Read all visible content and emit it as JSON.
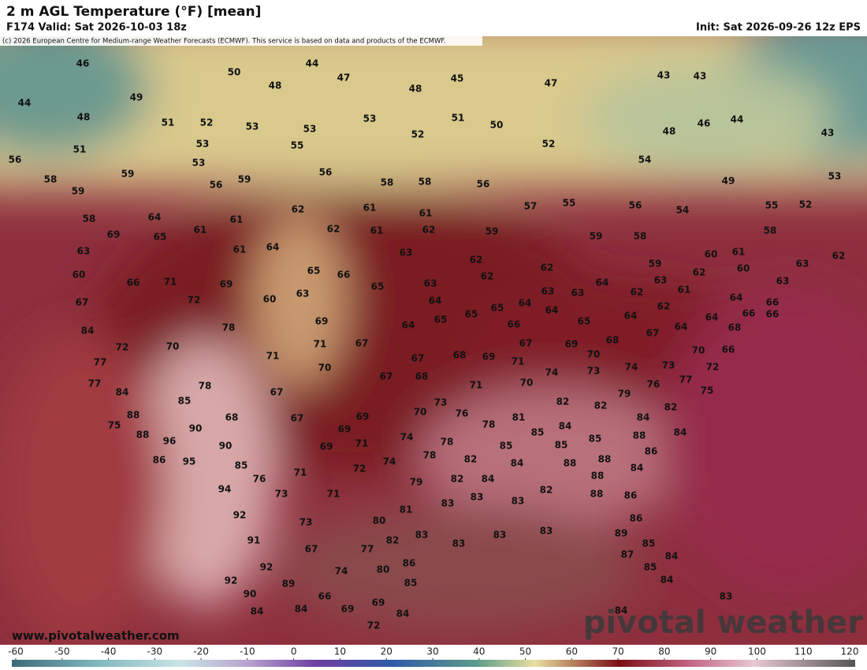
{
  "header": {
    "title": "2 m AGL Temperature (°F) [mean]",
    "valid": "F174 Valid: Sat 2026-10-03 18z",
    "init": "Init: Sat 2026-09-26 12z EPS",
    "credit": "(c) 2026 European Centre for Medium-range Weather Forecasts (ECMWF). This service is based on data and products of the ECMWF."
  },
  "map": {
    "values": [
      46,
      50,
      44,
      47,
      48,
      45,
      48,
      47,
      43,
      43,
      44,
      49,
      48,
      51,
      52,
      53,
      53,
      53,
      51,
      50,
      46,
      44,
      48,
      43,
      51,
      53,
      55,
      52,
      52,
      54,
      56,
      58,
      59,
      59,
      53,
      56,
      59,
      56,
      58,
      58,
      56,
      49,
      53,
      58,
      64,
      61,
      62,
      61,
      61,
      57,
      55,
      56,
      54,
      55,
      52,
      58,
      69,
      65,
      61,
      62,
      61,
      62,
      59,
      59,
      58,
      60,
      61,
      63,
      62,
      63,
      61,
      64,
      63,
      62,
      59,
      60,
      60,
      66,
      71,
      69,
      65,
      66,
      65,
      63,
      62,
      62,
      62,
      63,
      67,
      72,
      60,
      63,
      64,
      64,
      63,
      63,
      64,
      62,
      63,
      61,
      64,
      66,
      84,
      78,
      69,
      64,
      65,
      65,
      65,
      64,
      62,
      66,
      65,
      64,
      64,
      64,
      66,
      66,
      68,
      72,
      70,
      71,
      67,
      67,
      69,
      68,
      67,
      70,
      66,
      77,
      71,
      70,
      67,
      68,
      69,
      71,
      70,
      73,
      74,
      73,
      74,
      72,
      77,
      78,
      67,
      68,
      71,
      70,
      76,
      77,
      75,
      84,
      85,
      67,
      73,
      82,
      82,
      79,
      84,
      82,
      88,
      68,
      67,
      69,
      70,
      76,
      81,
      78,
      85,
      84,
      85,
      88,
      84,
      75,
      88,
      96,
      90,
      90,
      69,
      71,
      74,
      78,
      85,
      85,
      88,
      88,
      86,
      86,
      95,
      85,
      69,
      74,
      78,
      82,
      84,
      88,
      84,
      94,
      76,
      73,
      71,
      72,
      79,
      82,
      84,
      83,
      83,
      83,
      82,
      88,
      86,
      92,
      71,
      81,
      80,
      86,
      91,
      73,
      82,
      83,
      83,
      83,
      83,
      89,
      85,
      67,
      77,
      87,
      84,
      92,
      74,
      80,
      86,
      85,
      92,
      89,
      85,
      84,
      90,
      66,
      83,
      84,
      84,
      69,
      69,
      84,
      84,
      72
    ]
  },
  "watermark": {
    "url": "www.pivotalweather.com",
    "brand": "pivotal weather"
  },
  "colorbar": {
    "ticks": [
      -60,
      -50,
      -40,
      -30,
      -20,
      -10,
      0,
      10,
      20,
      30,
      40,
      50,
      60,
      70,
      80,
      90,
      100,
      110,
      120
    ]
  }
}
